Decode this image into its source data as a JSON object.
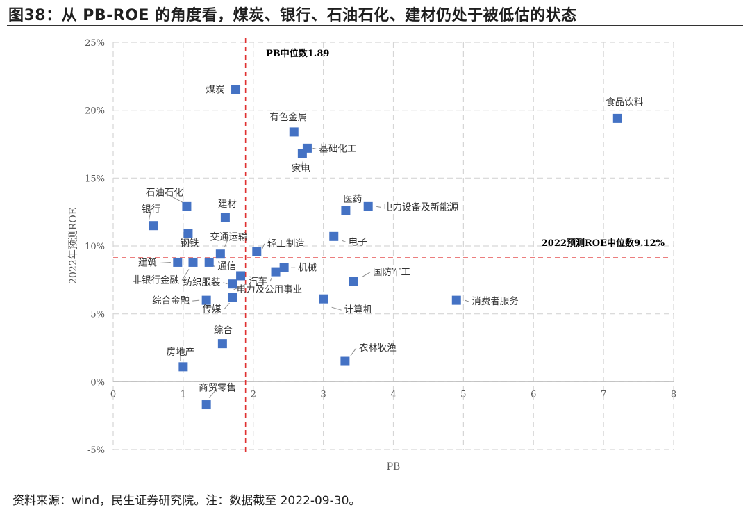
{
  "figure": {
    "title": "图38：从 PB-ROE 的角度看，煤炭、银行、石油石化、建材仍处于被低估的状态",
    "source": "资料来源：wind，民生证券研究院。注：数据截至 2022-09-30。"
  },
  "chart_data": {
    "type": "scatter",
    "xlabel": "PB",
    "ylabel": "2022年预测ROE",
    "xlim": [
      0,
      8
    ],
    "ylim": [
      -5,
      25
    ],
    "xticks": [
      "0",
      "1",
      "2",
      "3",
      "4",
      "5",
      "6",
      "7",
      "8"
    ],
    "yticks": [
      "-5%",
      "0%",
      "5%",
      "10%",
      "15%",
      "20%",
      "25%"
    ],
    "grid": true,
    "marker_color": "#4472C4",
    "ref_line_color": "#E03030",
    "reference_lines": [
      {
        "axis": "x",
        "value": 1.89,
        "label": "PB中位数1.89"
      },
      {
        "axis": "y",
        "value": 9.12,
        "label": "2022预测ROE中位数9.12%"
      }
    ],
    "points": [
      {
        "name": "煤炭",
        "pb": 1.75,
        "roe": 21.5
      },
      {
        "name": "食品饮料",
        "pb": 7.2,
        "roe": 19.4
      },
      {
        "name": "有色金属",
        "pb": 2.58,
        "roe": 18.4
      },
      {
        "name": "基础化工",
        "pb": 2.77,
        "roe": 17.2
      },
      {
        "name": "家电",
        "pb": 2.7,
        "roe": 16.8
      },
      {
        "name": "石油石化",
        "pb": 1.05,
        "roe": 12.9
      },
      {
        "name": "建材",
        "pb": 1.6,
        "roe": 12.1
      },
      {
        "name": "银行",
        "pb": 0.57,
        "roe": 11.5
      },
      {
        "name": "医药",
        "pb": 3.32,
        "roe": 12.6
      },
      {
        "name": "电力设备及新能源",
        "pb": 3.64,
        "roe": 12.9
      },
      {
        "name": "钢铁",
        "pb": 1.07,
        "roe": 10.9
      },
      {
        "name": "交通运输",
        "pb": 1.53,
        "roe": 9.4
      },
      {
        "name": "轻工制造",
        "pb": 2.05,
        "roe": 9.6
      },
      {
        "name": "电子",
        "pb": 3.15,
        "roe": 10.7
      },
      {
        "name": "建筑",
        "pb": 0.92,
        "roe": 8.8
      },
      {
        "name": "非银行金融",
        "pb": 1.14,
        "roe": 8.8
      },
      {
        "name": "通信",
        "pb": 1.37,
        "roe": 8.8
      },
      {
        "name": "汽车",
        "pb": 2.32,
        "roe": 8.1
      },
      {
        "name": "机械",
        "pb": 2.44,
        "roe": 8.4
      },
      {
        "name": "纺织服装",
        "pb": 1.71,
        "roe": 7.2
      },
      {
        "name": "电力及公用事业",
        "pb": 1.82,
        "roe": 7.8
      },
      {
        "name": "国防军工",
        "pb": 3.43,
        "roe": 7.4
      },
      {
        "name": "消费者服务",
        "pb": 4.9,
        "roe": 6.0
      },
      {
        "name": "综合金融",
        "pb": 1.33,
        "roe": 6.0
      },
      {
        "name": "传媒",
        "pb": 1.7,
        "roe": 6.2
      },
      {
        "name": "计算机",
        "pb": 3.0,
        "roe": 6.1
      },
      {
        "name": "综合",
        "pb": 1.56,
        "roe": 2.8
      },
      {
        "name": "农林牧渔",
        "pb": 3.31,
        "roe": 1.5
      },
      {
        "name": "房地产",
        "pb": 1.0,
        "roe": 1.1
      },
      {
        "name": "商贸零售",
        "pb": 1.33,
        "roe": -1.7
      }
    ]
  }
}
